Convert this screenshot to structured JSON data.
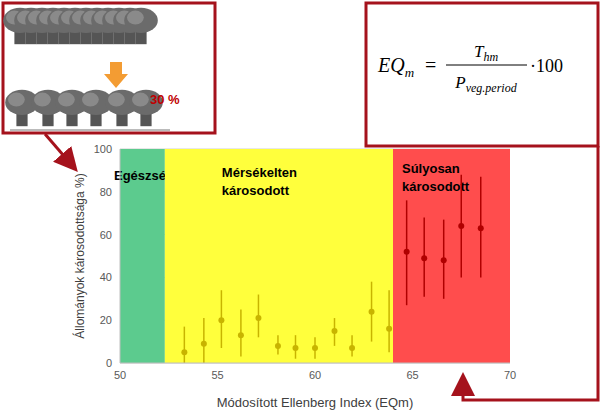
{
  "chart_data": {
    "type": "scatter",
    "xlabel": "Módosított Ellenberg Index (EQm)",
    "ylabel": "Állományok károsodottsága %)",
    "xlim": [
      50,
      70
    ],
    "xticks": [
      50,
      55,
      60,
      65,
      70
    ],
    "ylim": [
      0,
      100
    ],
    "yticks": [
      0,
      20,
      40,
      60,
      80,
      100
    ],
    "grid": true,
    "marker": "circle",
    "zones": [
      {
        "label": [
          "Egészséges"
        ],
        "from": 50,
        "to": 52.3,
        "color": "#5ccb8e"
      },
      {
        "label": [
          "Mérsékelten",
          "károsodott"
        ],
        "from": 52.3,
        "to": 64,
        "color": "#ffff3c"
      },
      {
        "label": [
          "Súlyosan",
          "károsodott"
        ],
        "from": 64,
        "to": 70,
        "color": "#ff4d4d"
      }
    ],
    "series": [
      {
        "color": "#c8b400",
        "x": [
          53.3,
          54.3,
          55.2,
          56.2,
          57.1,
          58.1,
          59.0,
          60.0,
          61.0,
          61.9,
          62.9,
          63.8
        ],
        "values": [
          5,
          9,
          20,
          13,
          21,
          8,
          7,
          7,
          15,
          7,
          24,
          16
        ],
        "error_low": [
          0,
          0,
          7,
          3,
          12,
          4,
          2,
          2,
          8,
          3,
          10,
          5
        ],
        "error_high": [
          17,
          21,
          34,
          25,
          32,
          13,
          13,
          12,
          21,
          13,
          38,
          34
        ]
      },
      {
        "color": "#b00000",
        "x": [
          64.7,
          65.6,
          66.6,
          67.5,
          68.5
        ],
        "values": [
          52,
          49,
          48,
          64,
          63
        ],
        "error_low": [
          27,
          31,
          30,
          40,
          40
        ],
        "error_high": [
          76,
          68,
          67,
          88,
          87
        ]
      }
    ],
    "annotations": {
      "percent": "30 %",
      "formula": {
        "lhs": "EQ",
        "lhs_sub": "m",
        "relation": "=",
        "num": "T",
        "num_sub": "hm",
        "den": "P",
        "den_sub": "veg.period",
        "tail": "·100"
      }
    }
  }
}
